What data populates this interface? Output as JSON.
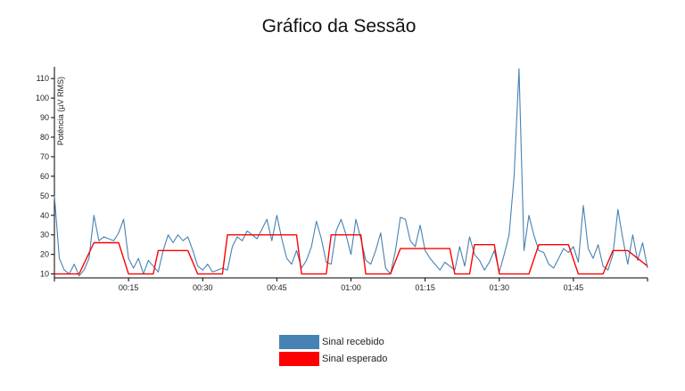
{
  "chart_data": {
    "type": "line",
    "title": "Gráfico da Sessão",
    "ylabel": "Potência (µV RMS)",
    "xlabel": "",
    "ylim": [
      8,
      116
    ],
    "xlim_minutes": [
      0,
      120
    ],
    "yticks": [
      10,
      20,
      30,
      40,
      50,
      60,
      70,
      80,
      90,
      100,
      110
    ],
    "xticks": [
      {
        "minute": 15,
        "label": "00:15"
      },
      {
        "minute": 30,
        "label": "00:30"
      },
      {
        "minute": 45,
        "label": "00:45"
      },
      {
        "minute": 60,
        "label": "01:00"
      },
      {
        "minute": 75,
        "label": "01:15"
      },
      {
        "minute": 90,
        "label": "01:30"
      },
      {
        "minute": 105,
        "label": "01:45"
      }
    ],
    "grid": false,
    "legend_position": "bottom-center",
    "series": [
      {
        "name": "Sinal recebido",
        "color": "#4682b4",
        "x": [
          0,
          1,
          2,
          3,
          4,
          5,
          6,
          7,
          8,
          9,
          10,
          11,
          12,
          13,
          14,
          15,
          16,
          17,
          18,
          19,
          20,
          21,
          22,
          23,
          24,
          25,
          26,
          27,
          28,
          29,
          30,
          31,
          32,
          33,
          34,
          35,
          36,
          37,
          38,
          39,
          40,
          41,
          42,
          43,
          44,
          45,
          46,
          47,
          48,
          49,
          50,
          51,
          52,
          53,
          54,
          55,
          56,
          57,
          58,
          59,
          60,
          61,
          62,
          63,
          64,
          65,
          66,
          67,
          68,
          69,
          70,
          71,
          72,
          73,
          74,
          75,
          76,
          77,
          78,
          79,
          80,
          81,
          82,
          83,
          84,
          85,
          86,
          87,
          88,
          89,
          90,
          91,
          92,
          93,
          94,
          95,
          96,
          97,
          98,
          99,
          100,
          101,
          102,
          103,
          104,
          105,
          106,
          107,
          108,
          109,
          110,
          111,
          112,
          113,
          114,
          115,
          116,
          117,
          118,
          119,
          120
        ],
        "y": [
          50,
          18,
          12,
          10,
          15,
          9,
          12,
          18,
          40,
          27,
          29,
          28,
          27,
          31,
          38,
          18,
          13,
          18,
          10,
          17,
          14,
          11,
          22,
          30,
          26,
          30,
          27,
          29,
          22,
          14,
          12,
          15,
          11,
          12,
          13,
          12,
          24,
          29,
          27,
          32,
          30,
          28,
          33,
          38,
          27,
          40,
          28,
          18,
          15,
          22,
          13,
          17,
          24,
          37,
          28,
          16,
          15,
          32,
          38,
          30,
          20,
          38,
          28,
          17,
          15,
          22,
          31,
          13,
          10,
          22,
          39,
          38,
          27,
          24,
          35,
          22,
          18,
          15,
          12,
          16,
          14,
          12,
          24,
          14,
          29,
          20,
          17,
          12,
          16,
          22,
          11,
          20,
          30,
          60,
          115,
          22,
          40,
          30,
          22,
          21,
          15,
          13,
          18,
          23,
          21,
          24,
          16,
          45,
          23,
          18,
          25,
          14,
          12,
          20,
          43,
          28,
          15,
          30,
          17,
          26,
          13
        ]
      },
      {
        "name": "Sinal esperado",
        "color": "#ff0000",
        "x": [
          0,
          5,
          8,
          13,
          15,
          20,
          21,
          27,
          29,
          34,
          35,
          40,
          44,
          49,
          50,
          55,
          56,
          62,
          63,
          68,
          70,
          73,
          75,
          80,
          81,
          84,
          85,
          89,
          90,
          94,
          96,
          98,
          100,
          104,
          106,
          111,
          113,
          116,
          120
        ],
        "y": [
          10,
          10,
          26,
          26,
          10,
          10,
          22,
          22,
          10,
          10,
          30,
          30,
          30,
          30,
          10,
          10,
          30,
          30,
          10,
          10,
          23,
          23,
          23,
          23,
          10,
          10,
          25,
          25,
          10,
          10,
          10,
          25,
          25,
          25,
          10,
          10,
          22,
          22,
          14
        ]
      }
    ]
  }
}
